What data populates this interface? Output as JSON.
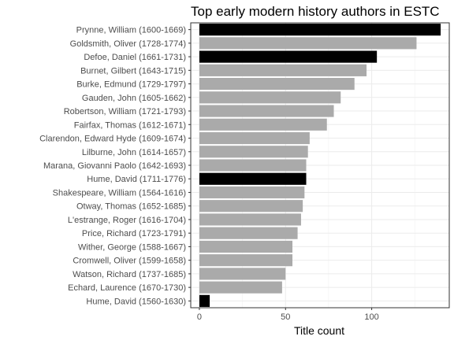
{
  "chart_data": {
    "type": "bar",
    "orientation": "horizontal",
    "title": "Top early modern history authors in ESTC",
    "xlabel": "Title count",
    "ylabel": "",
    "xlim": [
      -5,
      145
    ],
    "xticks": [
      0,
      50,
      100
    ],
    "grid": true,
    "legend": "none",
    "colors": {
      "highlight": "#000000",
      "default": "#aaaaaa"
    },
    "categories": [
      "Prynne, William (1600-1669)",
      "Goldsmith, Oliver (1728-1774)",
      "Defoe, Daniel (1661-1731)",
      "Burnet, Gilbert (1643-1715)",
      "Burke, Edmund (1729-1797)",
      "Gauden, John (1605-1662)",
      "Robertson, William (1721-1793)",
      "Fairfax, Thomas (1612-1671)",
      "Clarendon, Edward Hyde (1609-1674)",
      "Lilburne, John (1614-1657)",
      "Marana, Giovanni Paolo (1642-1693)",
      "Hume, David (1711-1776)",
      "Shakespeare, William (1564-1616)",
      "Otway, Thomas (1652-1685)",
      "L'estrange, Roger (1616-1704)",
      "Price, Richard (1723-1791)",
      "Wither, George (1588-1667)",
      "Cromwell, Oliver (1599-1658)",
      "Watson, Richard (1737-1685)",
      "Echard, Laurence (1670-1730)",
      "Hume, David (1560-1630)"
    ],
    "values": [
      140,
      126,
      103,
      97,
      90,
      82,
      78,
      74,
      64,
      63,
      62,
      62,
      61,
      60,
      59,
      57,
      54,
      54,
      50,
      48,
      6
    ],
    "highlighted": [
      true,
      false,
      true,
      false,
      false,
      false,
      false,
      false,
      false,
      false,
      false,
      true,
      false,
      false,
      false,
      false,
      false,
      false,
      false,
      false,
      true
    ]
  }
}
